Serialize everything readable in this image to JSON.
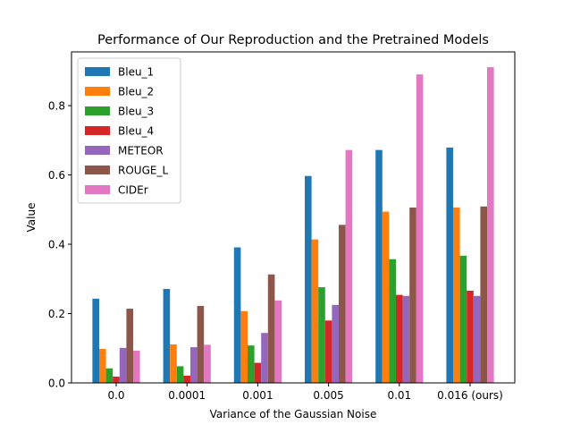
{
  "chart_data": {
    "type": "bar",
    "title": "Performance of Our Reproduction and the Pretrained Models",
    "xlabel": "Variance of the Gaussian Noise",
    "ylabel": "Value",
    "ylim": [
      0,
      0.955
    ],
    "yticks": [
      0.0,
      0.2,
      0.4,
      0.6,
      0.8
    ],
    "ytick_labels": [
      "0.0",
      "0.2",
      "0.4",
      "0.6",
      "0.8"
    ],
    "grid": false,
    "legend_position": "top-left",
    "categories": [
      "0.0",
      "0.0001",
      "0.001",
      "0.005",
      "0.01",
      "0.016 (ours)"
    ],
    "series": [
      {
        "name": "Bleu_1",
        "color": "#1f77b4",
        "values": [
          0.243,
          0.271,
          0.391,
          0.597,
          0.672,
          0.679
        ]
      },
      {
        "name": "Bleu_2",
        "color": "#ff7f0e",
        "values": [
          0.098,
          0.111,
          0.207,
          0.414,
          0.494,
          0.506
        ]
      },
      {
        "name": "Bleu_3",
        "color": "#2ca02c",
        "values": [
          0.042,
          0.048,
          0.108,
          0.276,
          0.357,
          0.367
        ]
      },
      {
        "name": "Bleu_4",
        "color": "#d62728",
        "values": [
          0.018,
          0.021,
          0.058,
          0.18,
          0.254,
          0.266
        ]
      },
      {
        "name": "METEOR",
        "color": "#9467bd",
        "values": [
          0.101,
          0.103,
          0.144,
          0.225,
          0.251,
          0.251
        ]
      },
      {
        "name": "ROUGE_L",
        "color": "#8c564b",
        "values": [
          0.214,
          0.222,
          0.313,
          0.456,
          0.506,
          0.509
        ]
      },
      {
        "name": "CIDEr",
        "color": "#e377c2",
        "values": [
          0.093,
          0.11,
          0.238,
          0.672,
          0.89,
          0.911
        ]
      }
    ]
  }
}
